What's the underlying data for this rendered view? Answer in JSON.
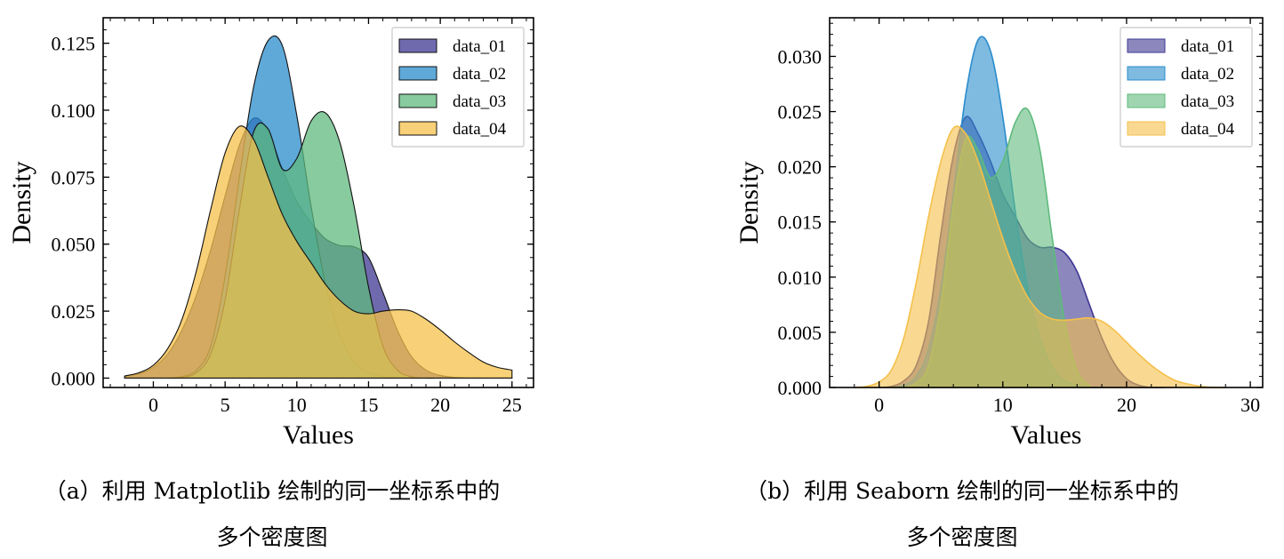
{
  "panels": [
    {
      "caption_line1": "（a）利用 Matplotlib 绘制的同一坐标系中的",
      "caption_line2": "多个密度图"
    },
    {
      "caption_line1": "（b）利用 Seaborn 绘制的同一坐标系中的",
      "caption_line2": "多个密度图"
    }
  ],
  "colors": {
    "data_01": "#3f3893",
    "data_02": "#2a8ccc",
    "data_03": "#5fba7d",
    "data_04": "#f5c04a"
  },
  "chart_data": [
    {
      "type": "area",
      "library": "Matplotlib",
      "xlabel": "Values",
      "ylabel": "Density",
      "xlim": [
        -3.5,
        26.5
      ],
      "ylim": [
        -0.0035,
        0.1345
      ],
      "xticks": [
        0,
        5,
        10,
        15,
        20,
        25
      ],
      "xtick_labels": [
        "0",
        "5",
        "10",
        "15",
        "20",
        "25"
      ],
      "yticks": [
        0.0,
        0.025,
        0.05,
        0.075,
        0.1,
        0.125
      ],
      "ytick_labels": [
        "0.000",
        "0.025",
        "0.050",
        "0.075",
        "0.100",
        "0.125"
      ],
      "legend_position": "top-right",
      "fill_alpha": 0.75,
      "series": [
        {
          "name": "data_01",
          "color_key": "data_01",
          "x": [
            -2,
            -1,
            0,
            1,
            2,
            3,
            4,
            5,
            6,
            7,
            8,
            9,
            10,
            11,
            12,
            13,
            14,
            15,
            16,
            17,
            18,
            19,
            20,
            21,
            22,
            23,
            24,
            25
          ],
          "y": [
            0.0006,
            0.0016,
            0.004,
            0.009,
            0.018,
            0.031,
            0.048,
            0.068,
            0.087,
            0.097,
            0.092,
            0.078,
            0.066,
            0.058,
            0.052,
            0.0495,
            0.049,
            0.045,
            0.032,
            0.018,
            0.008,
            0.003,
            0.001,
            0.0003,
            0.0001,
            0.0,
            0.0,
            0.0
          ]
        },
        {
          "name": "data_02",
          "color_key": "data_02",
          "x": [
            -2,
            -1,
            0,
            1,
            2,
            3,
            4,
            5,
            6,
            7,
            8,
            9,
            10,
            11,
            12,
            13,
            14,
            15,
            16,
            17,
            18,
            19,
            20,
            21,
            22,
            23,
            24,
            25
          ],
          "y": [
            0.0,
            0.0,
            0.0,
            0.0001,
            0.0006,
            0.003,
            0.012,
            0.038,
            0.075,
            0.109,
            0.126,
            0.124,
            0.098,
            0.064,
            0.035,
            0.016,
            0.006,
            0.002,
            0.0006,
            0.0001,
            0.0,
            0.0,
            0.0,
            0.0,
            0.0,
            0.0,
            0.0,
            0.0
          ]
        },
        {
          "name": "data_03",
          "color_key": "data_03",
          "x": [
            -2,
            -1,
            0,
            1,
            2,
            3,
            4,
            5,
            6,
            7,
            8,
            9,
            10,
            11,
            12,
            13,
            14,
            15,
            16,
            17,
            18,
            19,
            20,
            21,
            22,
            23,
            24,
            25
          ],
          "y": [
            0.0,
            0.0,
            0.0,
            0.0,
            0.0003,
            0.002,
            0.009,
            0.029,
            0.063,
            0.092,
            0.093,
            0.078,
            0.082,
            0.096,
            0.099,
            0.088,
            0.064,
            0.034,
            0.012,
            0.003,
            0.0005,
            0.0,
            0.0,
            0.0,
            0.0,
            0.0,
            0.0,
            0.0
          ]
        },
        {
          "name": "data_04",
          "color_key": "data_04",
          "x": [
            -2,
            -1,
            0,
            1,
            2,
            3,
            4,
            5,
            6,
            7,
            8,
            9,
            10,
            11,
            12,
            13,
            14,
            15,
            16,
            17,
            18,
            19,
            20,
            21,
            22,
            23,
            24,
            25
          ],
          "y": [
            0.0008,
            0.002,
            0.0048,
            0.011,
            0.022,
            0.04,
            0.063,
            0.084,
            0.094,
            0.089,
            0.075,
            0.061,
            0.051,
            0.043,
            0.035,
            0.029,
            0.025,
            0.024,
            0.025,
            0.0255,
            0.025,
            0.022,
            0.018,
            0.0135,
            0.0095,
            0.006,
            0.004,
            0.003
          ]
        }
      ]
    },
    {
      "type": "area",
      "library": "Seaborn",
      "xlabel": "Values",
      "ylabel": "Density",
      "xlim": [
        -4,
        31
      ],
      "ylim": [
        0.0,
        0.0335
      ],
      "xticks": [
        0,
        10,
        20,
        30
      ],
      "xtick_labels": [
        "0",
        "10",
        "20",
        "30"
      ],
      "yticks": [
        0.0,
        0.005,
        0.01,
        0.015,
        0.02,
        0.025,
        0.03
      ],
      "ytick_labels": [
        "0.000",
        "0.005",
        "0.010",
        "0.015",
        "0.020",
        "0.025",
        "0.030"
      ],
      "legend_position": "top-right",
      "fill_alpha": 0.6,
      "series": [
        {
          "name": "data_01",
          "color_key": "data_01",
          "x": [
            0,
            1,
            2,
            3,
            4,
            5,
            6,
            7,
            8,
            9,
            10,
            11,
            12,
            13,
            14,
            15,
            16,
            17,
            18,
            19,
            20,
            21,
            22,
            23
          ],
          "y": [
            0.0,
            0.0001,
            0.0006,
            0.002,
            0.006,
            0.014,
            0.021,
            0.0245,
            0.023,
            0.0205,
            0.0175,
            0.0155,
            0.0135,
            0.0127,
            0.0127,
            0.0122,
            0.0105,
            0.0075,
            0.0045,
            0.0022,
            0.0008,
            0.0002,
            0.0,
            0.0
          ]
        },
        {
          "name": "data_02",
          "color_key": "data_02",
          "x": [
            1,
            2,
            3,
            4,
            5,
            6,
            7,
            8,
            9,
            10,
            11,
            12,
            13,
            14,
            15,
            16,
            17,
            18
          ],
          "y": [
            0.0,
            0.0002,
            0.001,
            0.0035,
            0.009,
            0.0175,
            0.0265,
            0.0315,
            0.0305,
            0.0245,
            0.016,
            0.009,
            0.0045,
            0.0018,
            0.0006,
            0.0002,
            0.0,
            0.0
          ]
        },
        {
          "name": "data_03",
          "color_key": "data_03",
          "x": [
            2,
            3,
            4,
            5,
            6,
            7,
            8,
            9,
            10,
            11,
            12,
            13,
            14,
            15,
            16,
            17
          ],
          "y": [
            0.0,
            0.0004,
            0.002,
            0.0075,
            0.0165,
            0.0225,
            0.0215,
            0.019,
            0.0205,
            0.024,
            0.0252,
            0.0215,
            0.0135,
            0.006,
            0.0015,
            0.0002
          ]
        },
        {
          "name": "data_04",
          "color_key": "data_04",
          "x": [
            -2,
            -1,
            0,
            1,
            2,
            3,
            4,
            5,
            6,
            7,
            8,
            9,
            10,
            11,
            12,
            13,
            14,
            15,
            16,
            17,
            18,
            19,
            20,
            21,
            22,
            23,
            24,
            25,
            26,
            27,
            28
          ],
          "y": [
            0.0,
            0.0001,
            0.0005,
            0.0016,
            0.0045,
            0.0095,
            0.0155,
            0.0205,
            0.0235,
            0.023,
            0.0205,
            0.017,
            0.0135,
            0.0105,
            0.0082,
            0.0068,
            0.0062,
            0.0061,
            0.0062,
            0.0063,
            0.006,
            0.0052,
            0.0041,
            0.003,
            0.002,
            0.0012,
            0.0006,
            0.0003,
            0.0001,
            0.0,
            0.0
          ]
        }
      ]
    }
  ]
}
